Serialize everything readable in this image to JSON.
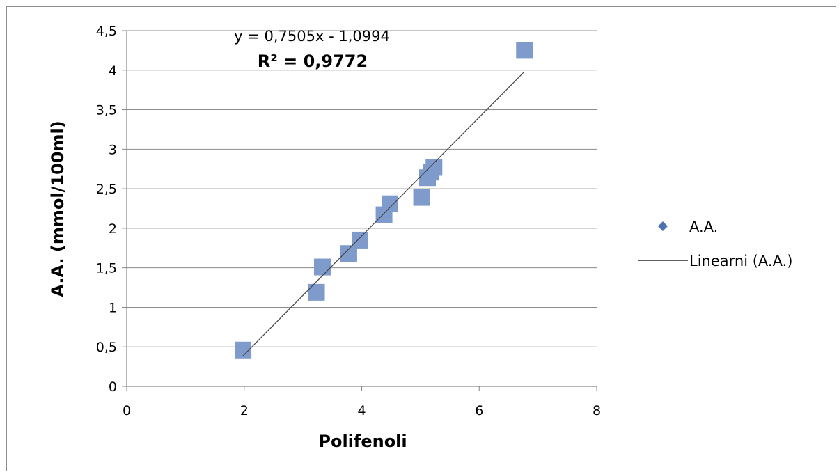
{
  "chart_data": {
    "type": "scatter",
    "xlabel": "Polifenoli",
    "ylabel": "A.A. (mmol/100ml)",
    "xlim": [
      0,
      8
    ],
    "ylim": [
      0,
      4.5
    ],
    "x_ticks": [
      "0",
      "2",
      "4",
      "6",
      "8"
    ],
    "y_ticks": [
      "0",
      "0,5",
      "1",
      "1,5",
      "2",
      "2,5",
      "3",
      "3,5",
      "4",
      "4,5"
    ],
    "grid": "horizontal",
    "legend_position": "right",
    "series": [
      {
        "name": "A.A.",
        "marker": "square",
        "color": "#7f9bcc",
        "points": [
          [
            1.98,
            0.46
          ],
          [
            3.23,
            1.19
          ],
          [
            3.33,
            1.51
          ],
          [
            3.78,
            1.68
          ],
          [
            3.97,
            1.85
          ],
          [
            4.38,
            2.17
          ],
          [
            4.48,
            2.31
          ],
          [
            5.02,
            2.39
          ],
          [
            5.12,
            2.64
          ],
          [
            5.18,
            2.71
          ],
          [
            5.23,
            2.77
          ],
          [
            6.77,
            4.25
          ]
        ]
      }
    ],
    "trendline": {
      "name": "Linearni (A.A.)",
      "slope": 0.7505,
      "intercept": -1.0994,
      "x_range": [
        1.98,
        6.77
      ],
      "color": "#404040",
      "equation_label": "y = 0,7505x - 1,0994",
      "r2_label": "R² = 0,9772"
    },
    "legend": [
      {
        "label": "A.A.",
        "icon": "diamond-icon",
        "color": "#4a72b0"
      },
      {
        "label": "Linearni (A.A.)",
        "icon": "line-icon",
        "color": "#000000"
      }
    ]
  }
}
